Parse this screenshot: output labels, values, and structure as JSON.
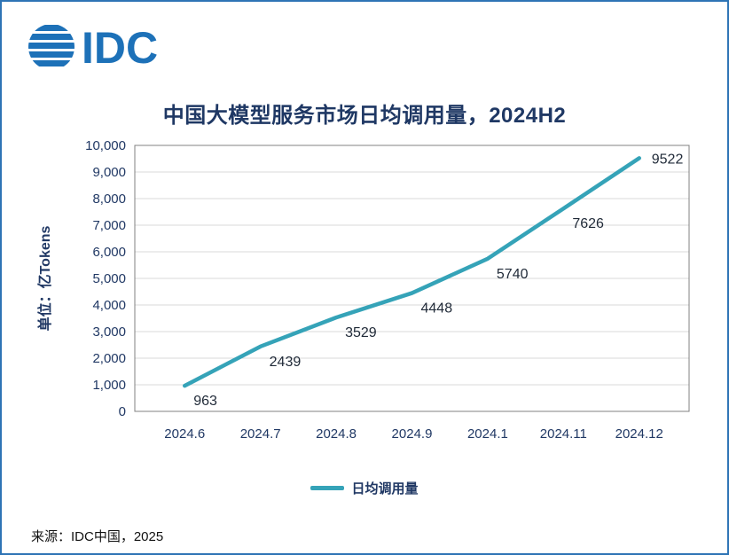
{
  "page": {
    "logo_text": "IDC",
    "source": "来源：IDC中国，2025"
  },
  "chart_data": {
    "type": "line",
    "title": "中国大模型服务市场日均调用量，2024H2",
    "ylabel": "单位：亿Tokens",
    "categories": [
      "2024.6",
      "2024.7",
      "2024.8",
      "2024.9",
      "2024.1",
      "2024.11",
      "2024.12"
    ],
    "series": [
      {
        "name": "日均调用量",
        "values": [
          963,
          2439,
          3529,
          4448,
          5740,
          7626,
          9522
        ]
      }
    ],
    "ylim": [
      0,
      10000
    ],
    "ytick_step": 1000,
    "grid": true,
    "legend_position": "bottom",
    "line_color": "#35a3b8",
    "grid_color": "#d9d9d9",
    "plot_border_color": "#808080",
    "title_color": "#1f3864",
    "axis_text_color": "#203864",
    "logo_color": "#1d71b8",
    "frame_border_color": "#2e74b5"
  }
}
